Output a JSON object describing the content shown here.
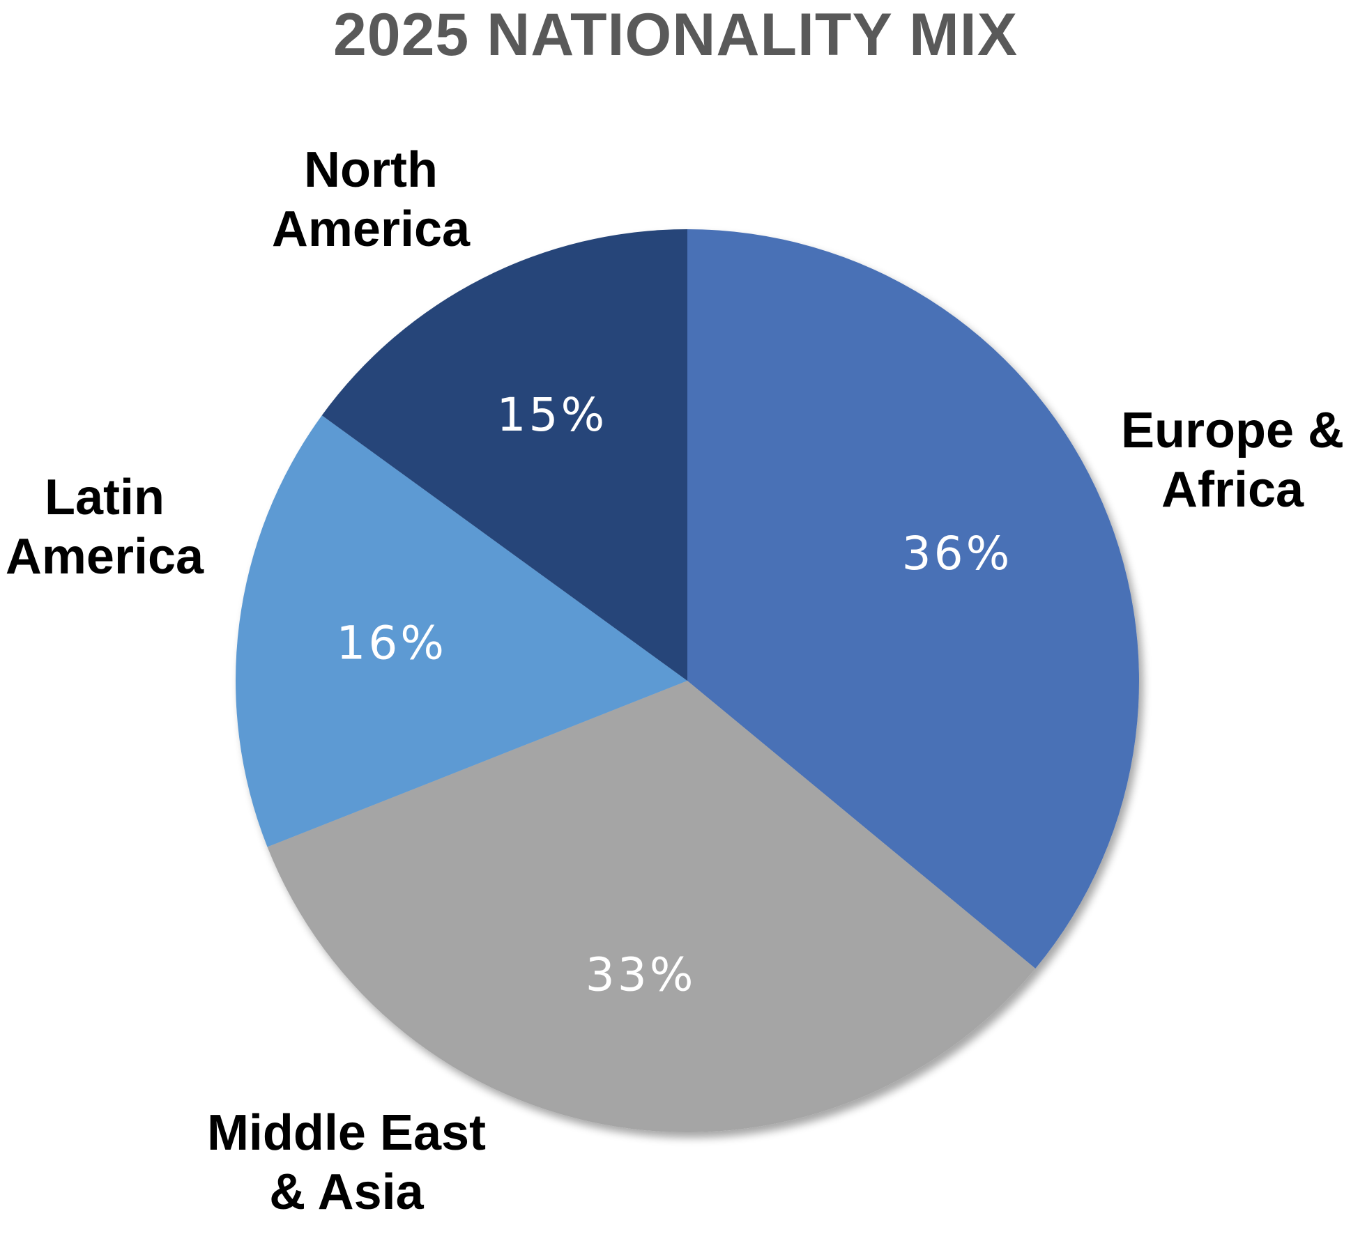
{
  "chart_data": {
    "type": "pie",
    "title": "2025 NATIONALITY MIX",
    "slices": [
      {
        "label": "Europe & Africa",
        "lines": [
          "Europe &",
          "Africa"
        ],
        "value": 36,
        "value_label": "36%",
        "color": "#4a71b6"
      },
      {
        "label": "Middle East & Asia",
        "lines": [
          "Middle East",
          "& Asia"
        ],
        "value": 33,
        "value_label": "33%",
        "color": "#a5a5a5"
      },
      {
        "label": "Latin America",
        "lines": [
          "Latin",
          "America"
        ],
        "value": 16,
        "value_label": "16%",
        "color": "#5d9ad3"
      },
      {
        "label": "North America",
        "lines": [
          "North",
          "America"
        ],
        "value": 15,
        "value_label": "15%",
        "color": "#254479"
      }
    ],
    "start_angle": "12 o'clock",
    "direction": "clockwise",
    "legend": "none",
    "data_labels": "percent inside slices, category names outside"
  }
}
